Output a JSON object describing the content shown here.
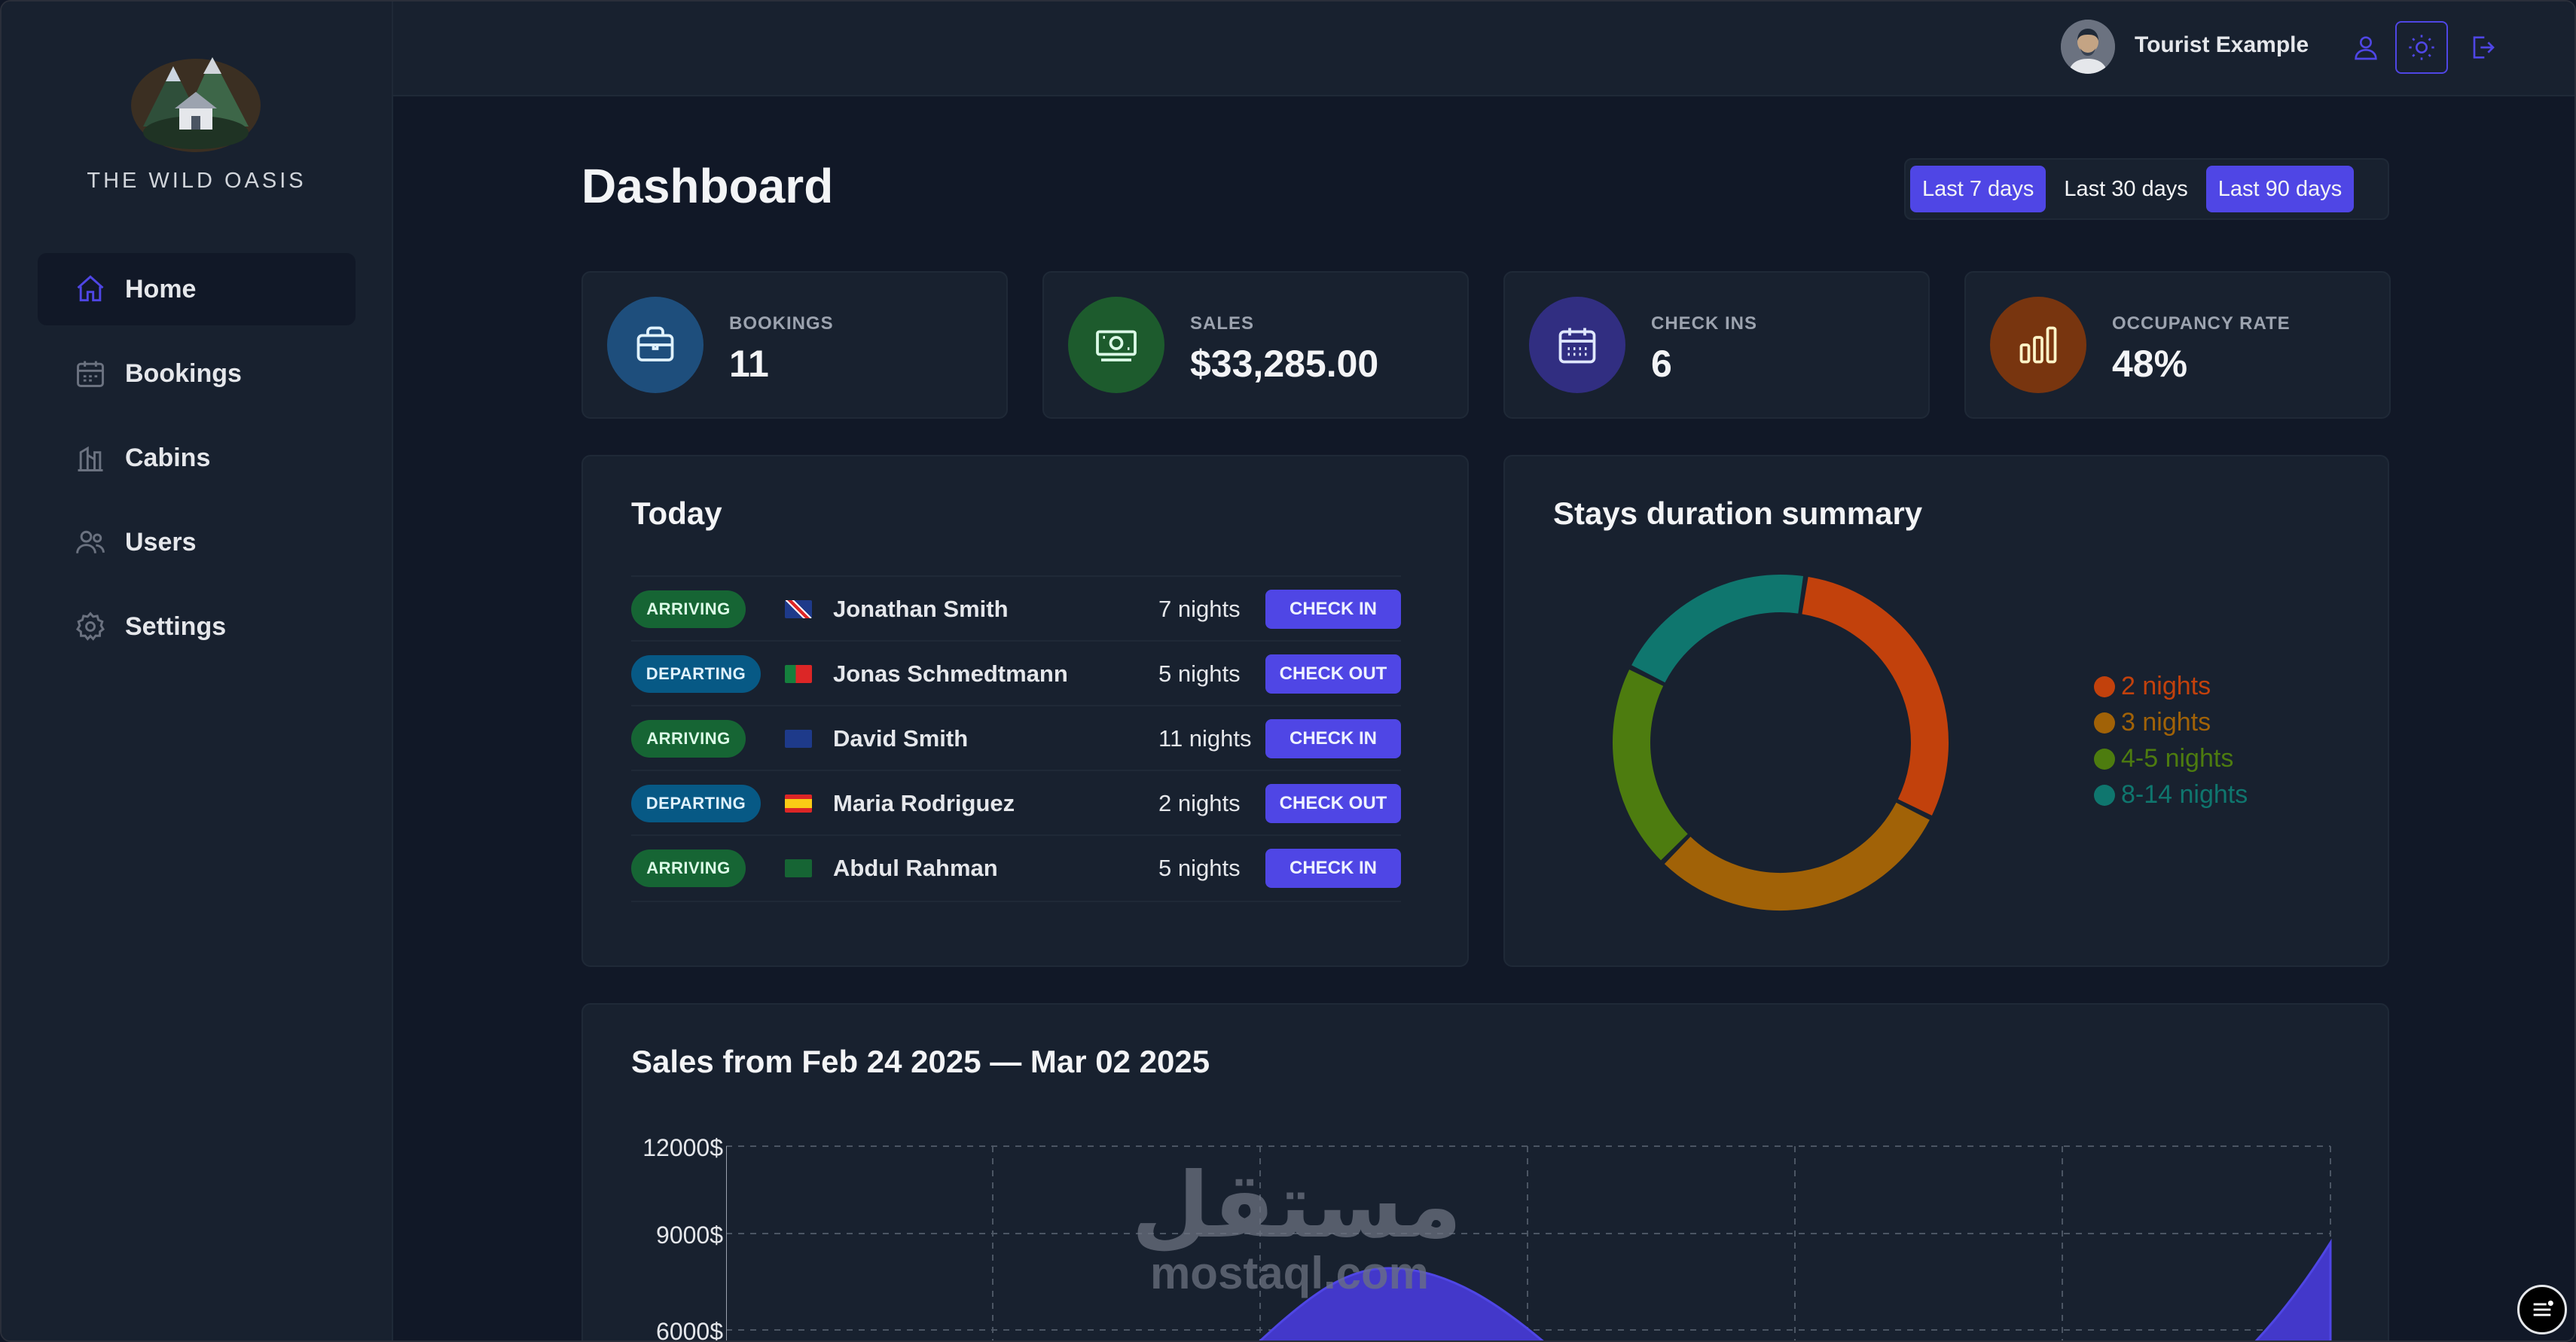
{
  "sidebar": {
    "brand": "THE WILD OASIS",
    "items": [
      {
        "label": "Home",
        "icon": "home-icon",
        "active": true
      },
      {
        "label": "Bookings",
        "icon": "calendar-icon",
        "active": false
      },
      {
        "label": "Cabins",
        "icon": "cabin-icon",
        "active": false
      },
      {
        "label": "Users",
        "icon": "users-icon",
        "active": false
      },
      {
        "label": "Settings",
        "icon": "gear-icon",
        "active": false
      }
    ]
  },
  "header": {
    "username": "Tourist Example"
  },
  "main": {
    "title": "Dashboard",
    "filters": [
      "Last 7 days",
      "Last 30 days",
      "Last 90 days"
    ],
    "stats": [
      {
        "label": "BOOKINGS",
        "value": "11",
        "icon": "briefcase-icon",
        "color": "#1e4e7c"
      },
      {
        "label": "SALES",
        "value": "$33,285.00",
        "icon": "banknotes-icon",
        "color": "#1d5b2d"
      },
      {
        "label": "CHECK INS",
        "value": "6",
        "icon": "calendar-days-icon",
        "color": "#312e81"
      },
      {
        "label": "OCCUPANCY RATE",
        "value": "48%",
        "icon": "chart-bar-icon",
        "color": "#78350f"
      }
    ],
    "today": {
      "title": "Today",
      "rows": [
        {
          "status": "ARRIVING",
          "guest": "Jonathan Smith",
          "nights": "7 nights",
          "action": "CHECK IN"
        },
        {
          "status": "DEPARTING",
          "guest": "Jonas Schmedtmann",
          "nights": "5 nights",
          "action": "CHECK OUT"
        },
        {
          "status": "ARRIVING",
          "guest": "David Smith",
          "nights": "11 nights",
          "action": "CHECK IN"
        },
        {
          "status": "DEPARTING",
          "guest": "Maria Rodriguez",
          "nights": "2 nights",
          "action": "CHECK OUT"
        },
        {
          "status": "ARRIVING",
          "guest": "Abdul Rahman",
          "nights": "5 nights",
          "action": "CHECK IN"
        }
      ]
    },
    "durations": {
      "title": "Stays duration summary",
      "legend": [
        {
          "label": "2 nights",
          "color": "#c2410c"
        },
        {
          "label": "3 nights",
          "color": "#a16207"
        },
        {
          "label": "4-5 nights",
          "color": "#4d7c0f"
        },
        {
          "label": "8-14 nights",
          "color": "#0f766e"
        }
      ]
    },
    "sales": {
      "title": "Sales from Feb 24 2025 — Mar 02 2025",
      "yticks": [
        "12000$",
        "9000$",
        "6000$"
      ]
    }
  },
  "watermark": {
    "arabic": "مستقل",
    "latin": "mostaql.com"
  },
  "chart_data": [
    {
      "type": "pie",
      "title": "Stays duration summary",
      "categories": [
        "2 nights",
        "3 nights",
        "4-5 nights",
        "8-14 nights"
      ],
      "values": [
        3,
        3,
        2,
        2
      ],
      "colors": [
        "#c2410c",
        "#a16207",
        "#4d7c0f",
        "#0f766e"
      ],
      "legend": "right"
    },
    {
      "type": "area",
      "title": "Sales from Feb 24 2025 — Mar 02 2025",
      "yticks": [
        "12000$",
        "9000$",
        "6000$"
      ],
      "ylim": [
        6000,
        12000
      ],
      "grid": true
    }
  ]
}
